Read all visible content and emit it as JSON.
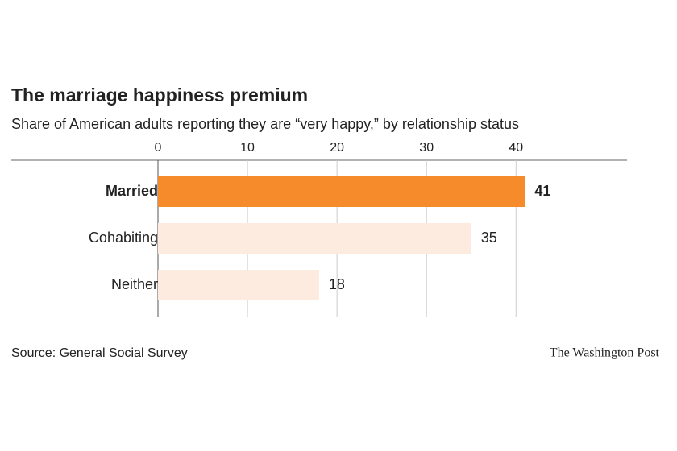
{
  "chart_data": {
    "type": "bar",
    "orientation": "horizontal",
    "title": "The marriage happiness premium",
    "subtitle": "Share of American adults reporting they are “very happy,” by relationship status",
    "categories": [
      "Married",
      "Cohabiting",
      "Neither"
    ],
    "values": [
      41,
      35,
      18
    ],
    "colors": [
      "#f68b2c",
      "#fdebe0",
      "#fdebe0"
    ],
    "highlight_index": 0,
    "xlim": [
      0,
      52.4
    ],
    "xticks": [
      0,
      10,
      20,
      30,
      40
    ],
    "grid": true,
    "source": "Source: General Social Survey",
    "credit": "The Washington Post"
  }
}
